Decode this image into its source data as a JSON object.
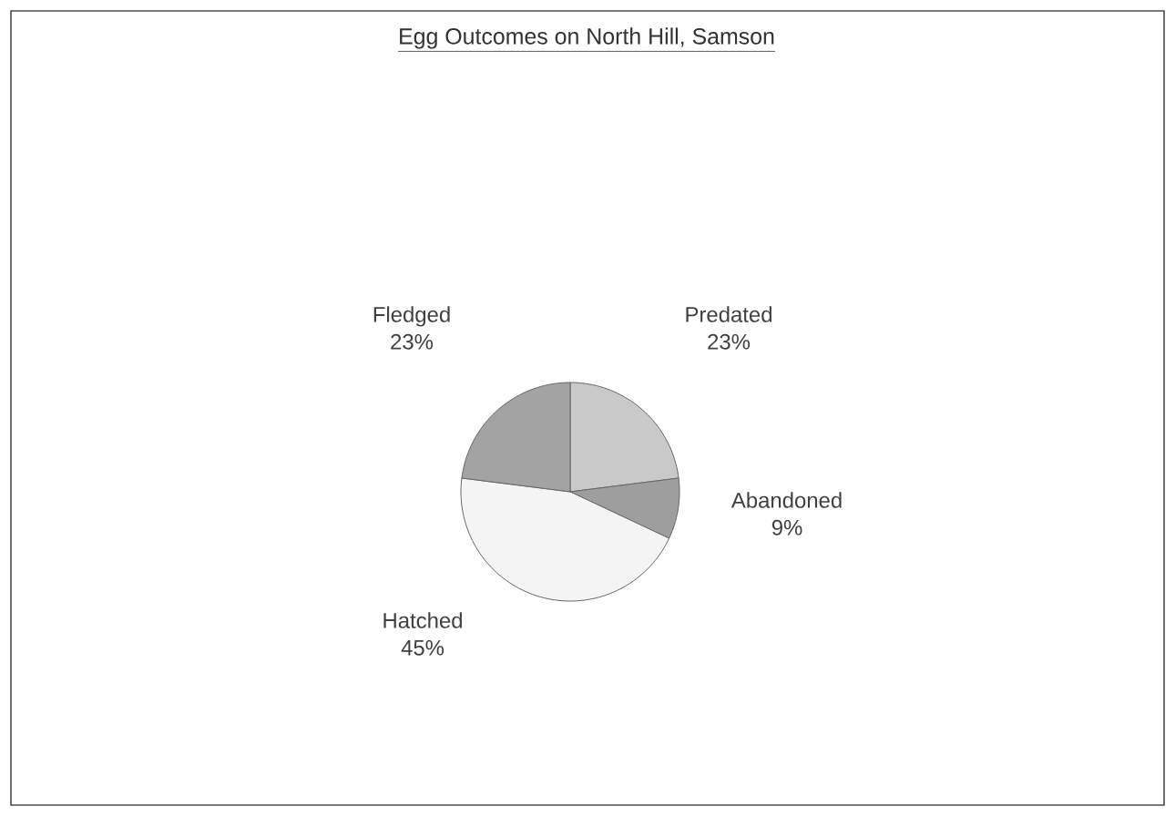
{
  "chart_data": {
    "type": "pie",
    "title": "Egg Outcomes on North Hill, Samson",
    "categories": [
      "Predated",
      "Abandoned",
      "Hatched",
      "Fledged"
    ],
    "values": [
      23,
      9,
      45,
      23
    ],
    "colors": [
      "#c9c9c9",
      "#9e9e9e",
      "#f4f4f4",
      "#a3a3a3"
    ],
    "value_labels": [
      "23%",
      "9%",
      "45%",
      "23%"
    ]
  }
}
